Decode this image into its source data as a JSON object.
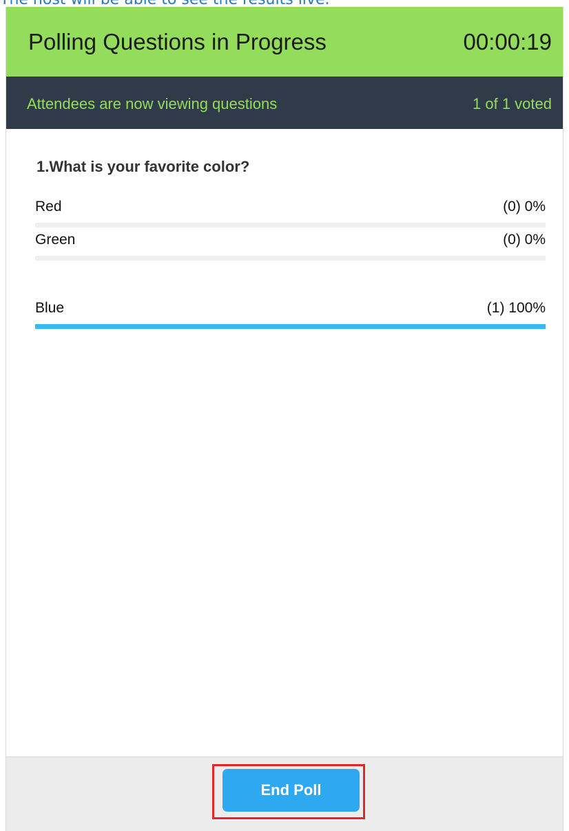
{
  "caption": "The host will be able to see the results live.",
  "header": {
    "title": "Polling Questions in Progress",
    "timer": "00:00:19"
  },
  "status": {
    "message": "Attendees are now viewing questions",
    "vote_count": "1 of 1 voted"
  },
  "poll": {
    "question": "1.What is your favorite color?",
    "answers": [
      {
        "label": "Red",
        "result": "(0) 0%",
        "fraction": 0
      },
      {
        "label": "Green",
        "result": "(0) 0%",
        "fraction": 0
      },
      {
        "label": "Blue",
        "result": "(1) 100%",
        "fraction": 1
      }
    ]
  },
  "footer": {
    "end_poll_label": "End Poll"
  },
  "colors": {
    "header_bg": "#94dc5c",
    "status_bg": "#2f3b48",
    "status_text": "#94dc5c",
    "bar_fill": "#36baf0",
    "button_bg": "#2ea8f0",
    "highlight": "#e4262a"
  }
}
